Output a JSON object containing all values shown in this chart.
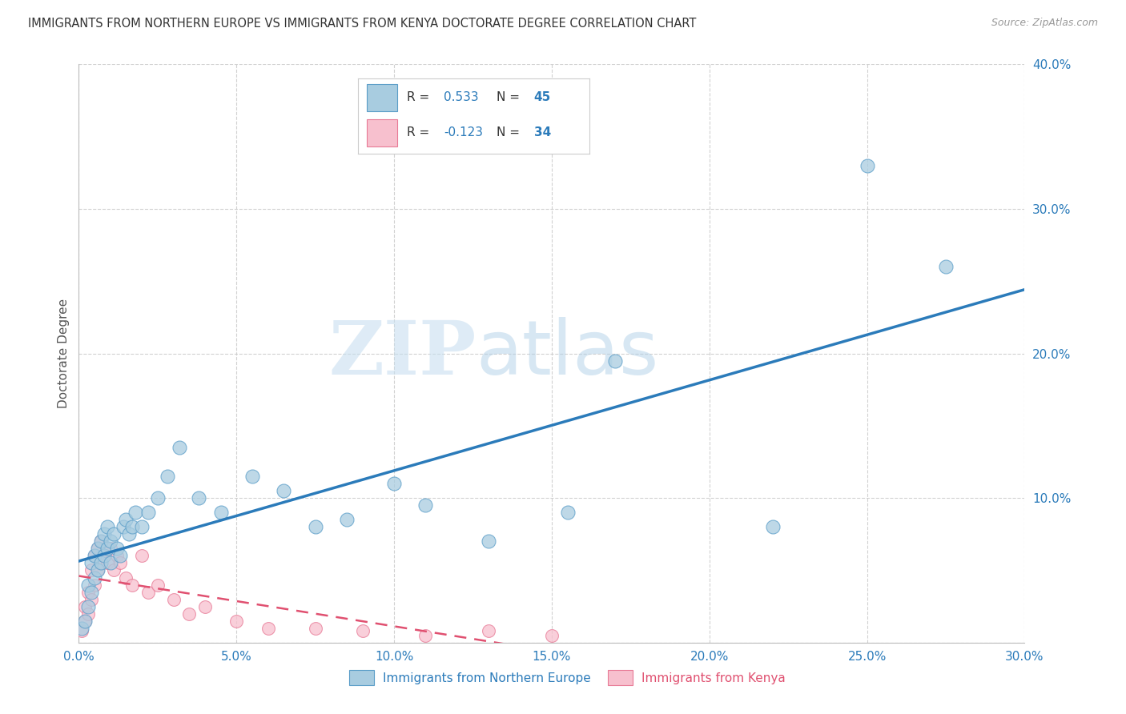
{
  "title": "IMMIGRANTS FROM NORTHERN EUROPE VS IMMIGRANTS FROM KENYA DOCTORATE DEGREE CORRELATION CHART",
  "source": "Source: ZipAtlas.com",
  "xlabel_label": "Immigrants from Northern Europe",
  "ylabel_label": "Doctorate Degree",
  "x_label_kenya": "Immigrants from Kenya",
  "xlim": [
    0.0,
    0.3
  ],
  "ylim": [
    0.0,
    0.4
  ],
  "xticks": [
    0.0,
    0.05,
    0.1,
    0.15,
    0.2,
    0.25,
    0.3
  ],
  "yticks": [
    0.0,
    0.1,
    0.2,
    0.3,
    0.4
  ],
  "xtick_labels": [
    "0.0%",
    "5.0%",
    "10.0%",
    "15.0%",
    "20.0%",
    "25.0%",
    "30.0%"
  ],
  "ytick_labels": [
    "",
    "10.0%",
    "20.0%",
    "30.0%",
    "40.0%"
  ],
  "blue_color": "#a8cce0",
  "blue_edge_color": "#5a9dc8",
  "blue_line_color": "#2b7bba",
  "pink_color": "#f7c0ce",
  "pink_edge_color": "#e87a96",
  "pink_line_color": "#e05070",
  "tick_label_color": "#2b7bba",
  "R_blue": 0.533,
  "N_blue": 45,
  "R_pink": -0.123,
  "N_pink": 34,
  "watermark_zip": "ZIP",
  "watermark_atlas": "atlas",
  "blue_scatter_x": [
    0.001,
    0.002,
    0.003,
    0.003,
    0.004,
    0.004,
    0.005,
    0.005,
    0.006,
    0.006,
    0.007,
    0.007,
    0.008,
    0.008,
    0.009,
    0.009,
    0.01,
    0.01,
    0.011,
    0.012,
    0.013,
    0.014,
    0.015,
    0.016,
    0.017,
    0.018,
    0.02,
    0.022,
    0.025,
    0.028,
    0.032,
    0.038,
    0.045,
    0.055,
    0.065,
    0.075,
    0.085,
    0.1,
    0.11,
    0.13,
    0.155,
    0.17,
    0.22,
    0.25,
    0.275
  ],
  "blue_scatter_y": [
    0.01,
    0.015,
    0.025,
    0.04,
    0.035,
    0.055,
    0.045,
    0.06,
    0.05,
    0.065,
    0.055,
    0.07,
    0.06,
    0.075,
    0.065,
    0.08,
    0.055,
    0.07,
    0.075,
    0.065,
    0.06,
    0.08,
    0.085,
    0.075,
    0.08,
    0.09,
    0.08,
    0.09,
    0.1,
    0.115,
    0.135,
    0.1,
    0.09,
    0.115,
    0.105,
    0.08,
    0.085,
    0.11,
    0.095,
    0.07,
    0.09,
    0.195,
    0.08,
    0.33,
    0.26
  ],
  "pink_scatter_x": [
    0.001,
    0.002,
    0.002,
    0.003,
    0.003,
    0.004,
    0.004,
    0.005,
    0.005,
    0.006,
    0.006,
    0.007,
    0.007,
    0.008,
    0.009,
    0.01,
    0.011,
    0.012,
    0.013,
    0.015,
    0.017,
    0.02,
    0.022,
    0.025,
    0.03,
    0.035,
    0.04,
    0.05,
    0.06,
    0.075,
    0.09,
    0.11,
    0.13,
    0.15
  ],
  "pink_scatter_y": [
    0.008,
    0.015,
    0.025,
    0.02,
    0.035,
    0.03,
    0.05,
    0.04,
    0.06,
    0.05,
    0.065,
    0.055,
    0.07,
    0.06,
    0.055,
    0.065,
    0.05,
    0.06,
    0.055,
    0.045,
    0.04,
    0.06,
    0.035,
    0.04,
    0.03,
    0.02,
    0.025,
    0.015,
    0.01,
    0.01,
    0.008,
    0.005,
    0.008,
    0.005
  ],
  "grid_color": "#cccccc",
  "bg_color": "#ffffff"
}
